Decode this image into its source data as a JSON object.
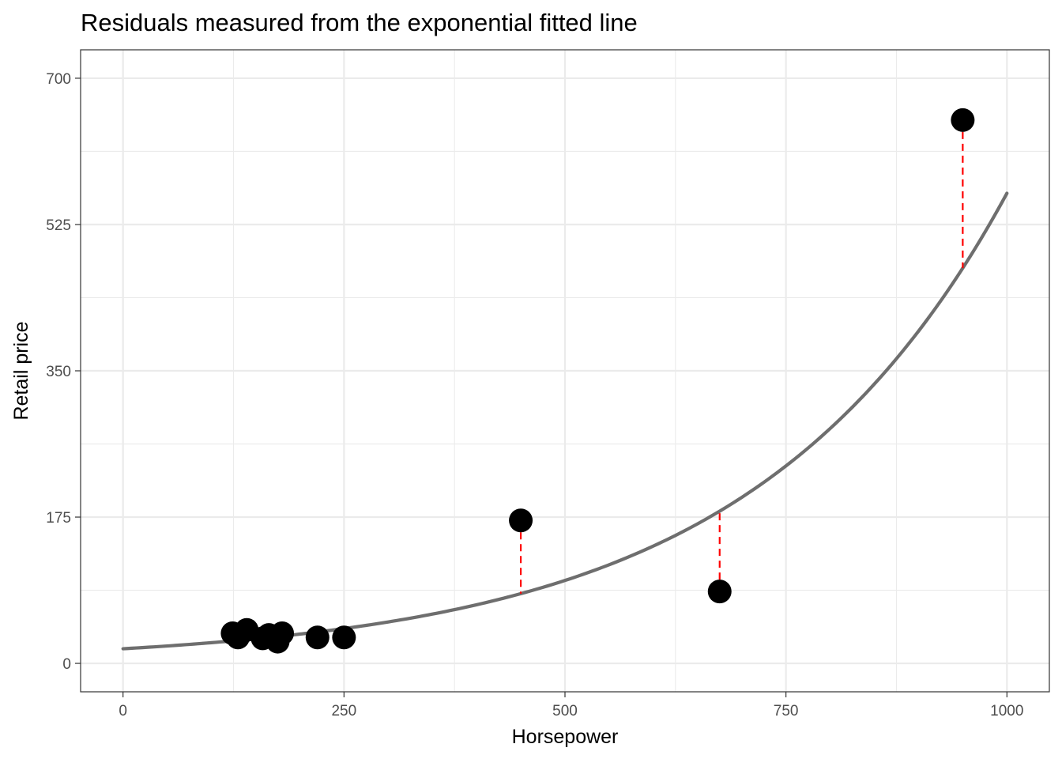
{
  "chart_data": {
    "type": "scatter",
    "title": "Residuals measured from the exponential fitted line",
    "xlabel": "Horsepower",
    "ylabel": "Retail price",
    "xlim": [
      -48,
      1048
    ],
    "ylim": [
      -34,
      734
    ],
    "x_ticks": [
      0,
      250,
      500,
      750,
      1000
    ],
    "y_ticks": [
      0,
      175,
      350,
      525,
      700
    ],
    "x_minor": [
      125,
      375,
      625,
      875
    ],
    "y_minor": [
      87.5,
      262.5,
      437.5,
      612.5
    ],
    "grid": true,
    "legend": "none",
    "points": [
      {
        "x": 124,
        "y": 36
      },
      {
        "x": 130,
        "y": 31
      },
      {
        "x": 140,
        "y": 40
      },
      {
        "x": 158,
        "y": 30
      },
      {
        "x": 165,
        "y": 34
      },
      {
        "x": 175,
        "y": 26
      },
      {
        "x": 180,
        "y": 36
      },
      {
        "x": 220,
        "y": 31
      },
      {
        "x": 250,
        "y": 31
      },
      {
        "x": 450,
        "y": 171
      },
      {
        "x": 675,
        "y": 86
      },
      {
        "x": 950,
        "y": 650
      }
    ],
    "fit": {
      "type": "exponential",
      "x_range": [
        0,
        1000
      ],
      "a": 17.5,
      "b": 0.00347
    },
    "colors": {
      "points": "#000000",
      "fit_line": "#6e6e6e",
      "residuals": "#ff0000",
      "grid": "#ebebeb",
      "panel_border": "#333333"
    }
  }
}
